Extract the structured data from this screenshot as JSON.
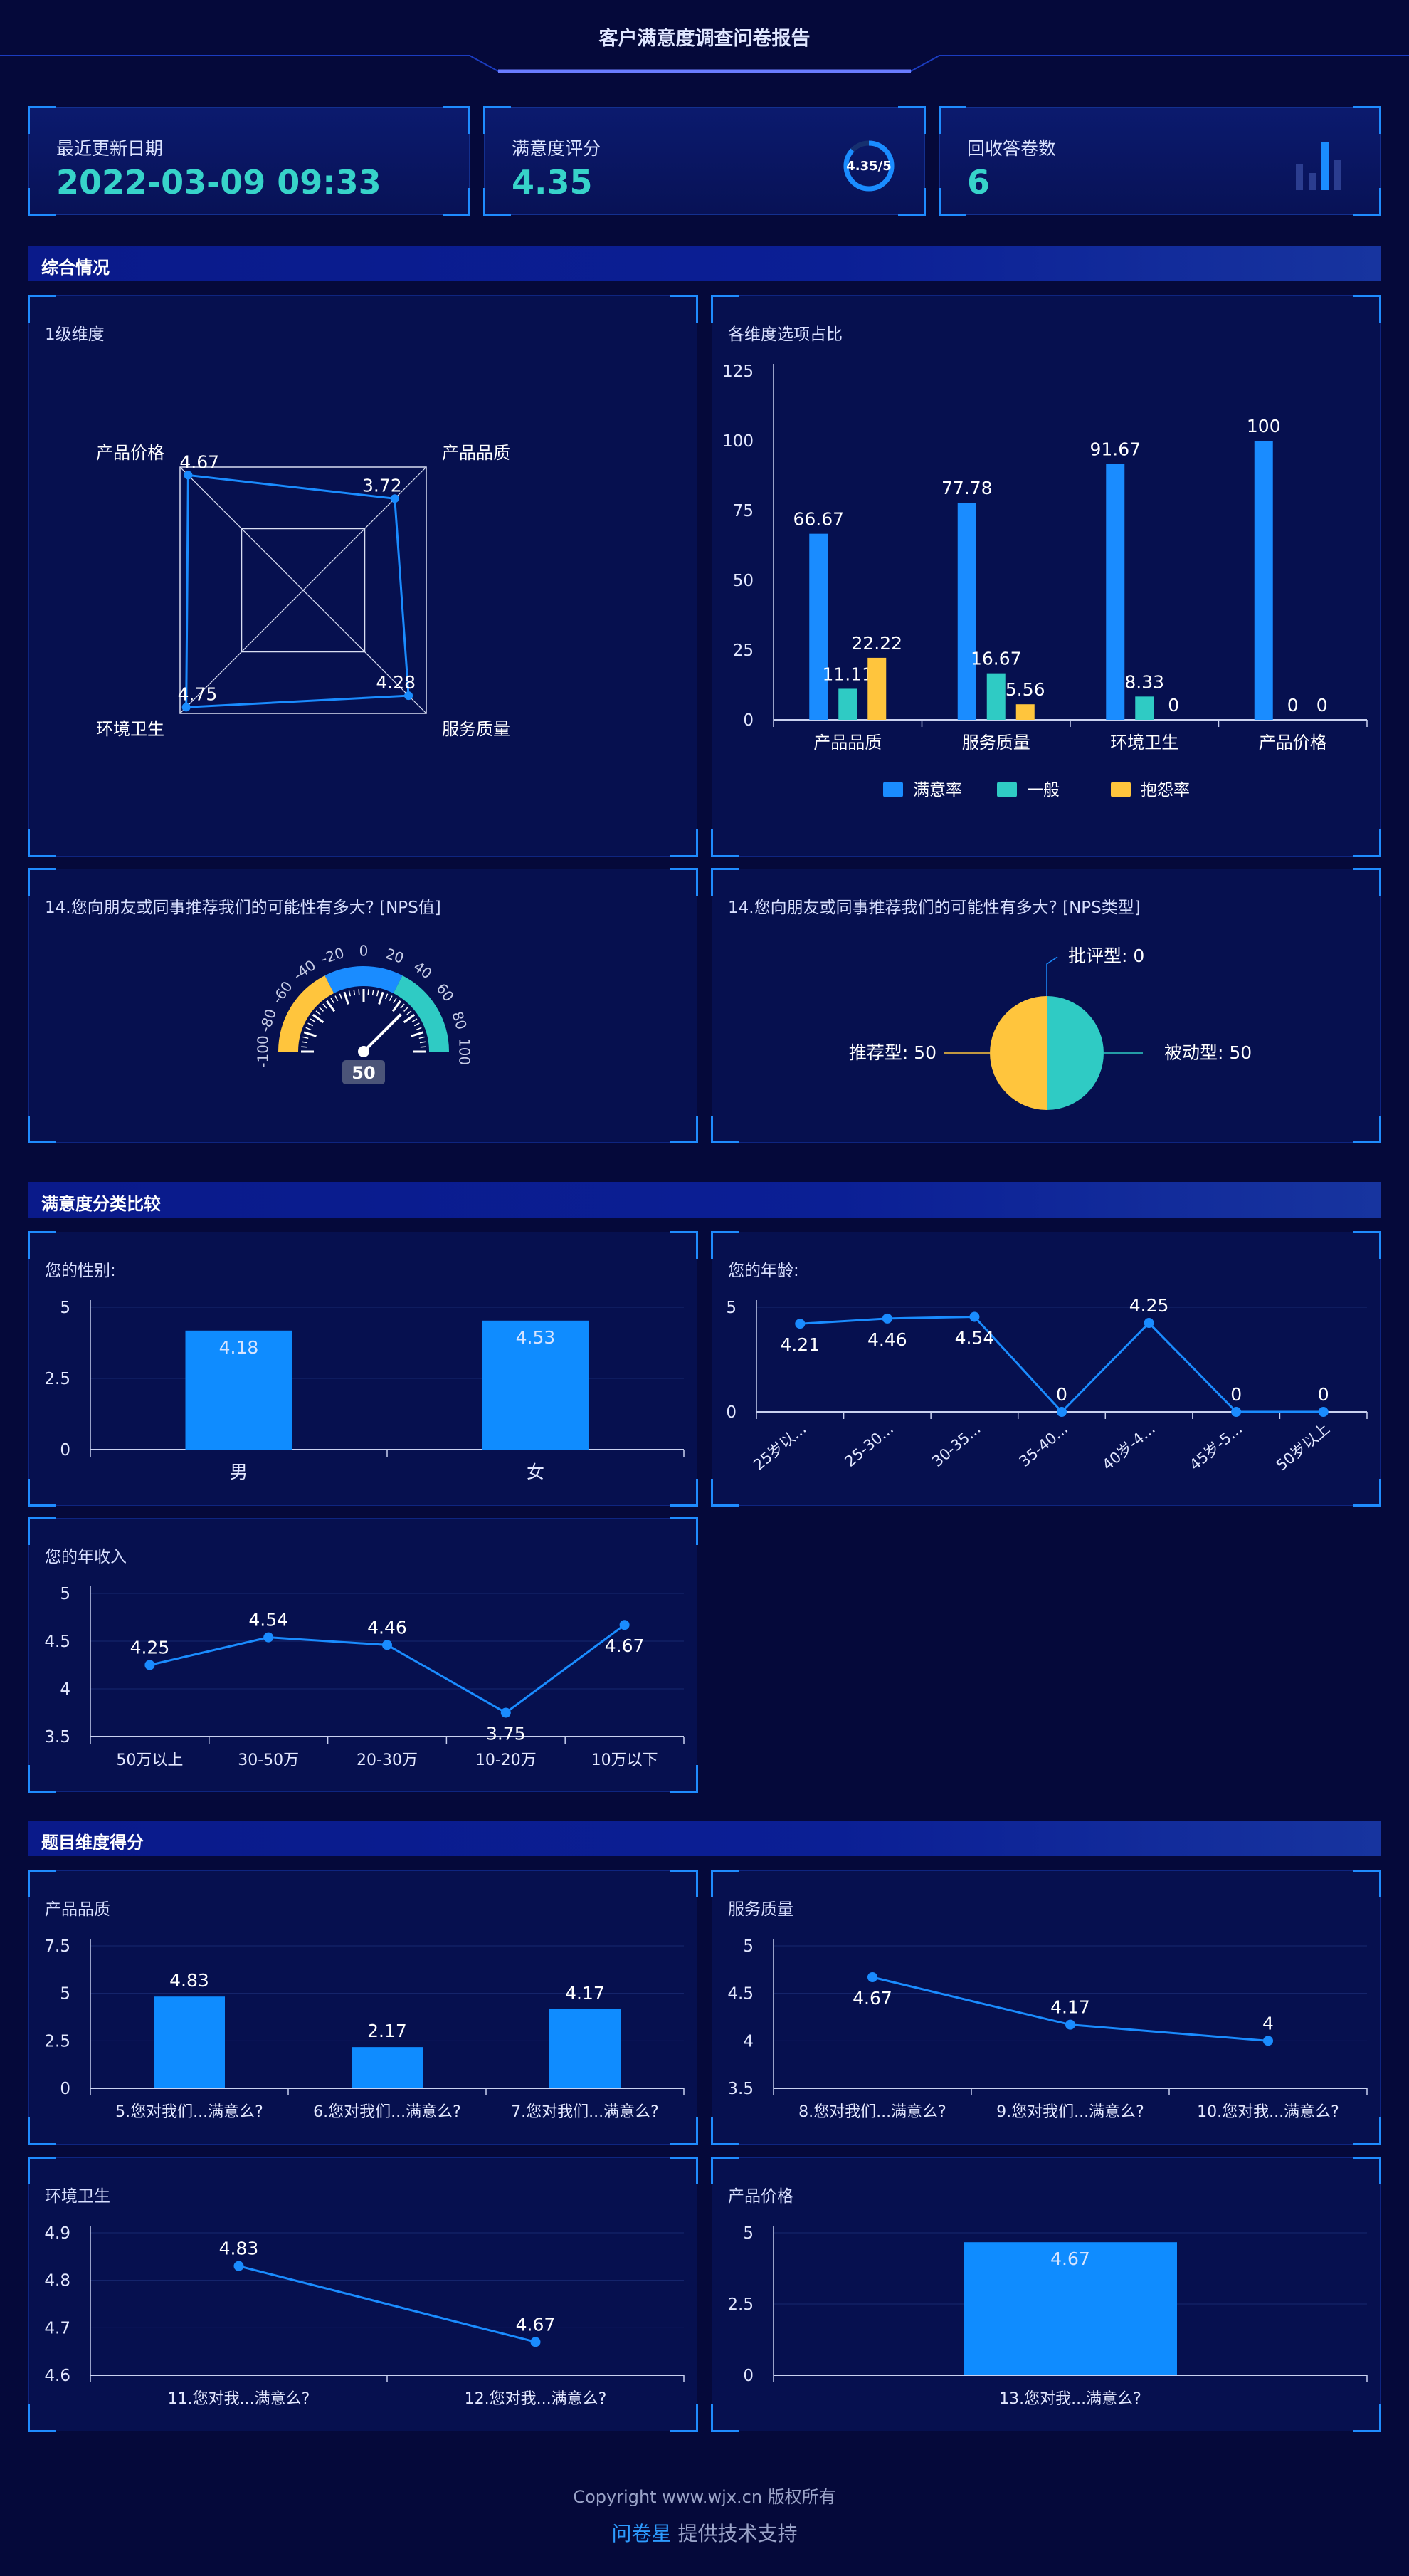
{
  "header": {
    "title": "客户满意度调查问卷报告"
  },
  "stats": {
    "updated": {
      "label": "最近更新日期",
      "value": "2022-03-09 09:33"
    },
    "score": {
      "label": "满意度评分",
      "value": "4.35",
      "ring_text": "4.35/5",
      "ring_fraction": 0.87
    },
    "responses": {
      "label": "回收答卷数",
      "value": "6"
    }
  },
  "sections": {
    "overview": "综合情况",
    "compare": "满意度分类比较",
    "dimension": "题目维度得分"
  },
  "panels": {
    "radar": "1级维度",
    "ratio": "各维度选项占比",
    "nps_gauge": "14.您向朋友或同事推荐我们的可能性有多大? [NPS值]",
    "nps_type": "14.您向朋友或同事推荐我们的可能性有多大? [NPS类型]",
    "gender": "您的性别:",
    "age": "您的年龄:",
    "income": "您的年收入",
    "quality": "产品品质",
    "service": "服务质量",
    "env": "环境卫生",
    "price": "产品价格"
  },
  "chart_data": [
    {
      "id": "radar",
      "type": "radar",
      "axes": [
        "产品品质",
        "服务质量",
        "环境卫生",
        "产品价格"
      ],
      "values": [
        3.72,
        4.28,
        4.75,
        4.67
      ],
      "max": 5
    },
    {
      "id": "ratio",
      "type": "bar",
      "categories": [
        "产品品质",
        "服务质量",
        "环境卫生",
        "产品价格"
      ],
      "series": [
        {
          "name": "满意率",
          "values": [
            66.67,
            77.78,
            91.67,
            100
          ],
          "color": "#1a8cff"
        },
        {
          "name": "一般",
          "values": [
            11.11,
            16.67,
            8.33,
            0
          ],
          "color": "#2fcbc4"
        },
        {
          "name": "抱怨率",
          "values": [
            22.22,
            5.56,
            0,
            0
          ],
          "color": "#ffc53d"
        }
      ],
      "ylim": [
        0,
        125
      ],
      "yticks": [
        0,
        25,
        50,
        75,
        100,
        125
      ],
      "legend": "bottom"
    },
    {
      "id": "nps_gauge",
      "type": "gauge",
      "value": 50,
      "min": -100,
      "max": 100,
      "ticks": [
        -100,
        -80,
        -60,
        -40,
        -20,
        0,
        20,
        40,
        60,
        80,
        100
      ]
    },
    {
      "id": "nps_type",
      "type": "pie",
      "slices": [
        {
          "label": "推荐型",
          "value": 50,
          "color": "#ffc53d"
        },
        {
          "label": "被动型",
          "value": 50,
          "color": "#2fcbc4"
        },
        {
          "label": "批评型",
          "value": 0,
          "color": "#1a8cff"
        }
      ]
    },
    {
      "id": "gender",
      "type": "bar",
      "categories": [
        "男",
        "女"
      ],
      "values": [
        4.18,
        4.53
      ],
      "ylim": [
        0,
        5
      ],
      "yticks": [
        0,
        2.5,
        5
      ]
    },
    {
      "id": "age",
      "type": "line",
      "categories": [
        "25岁以...",
        "25-30...",
        "30-35...",
        "35-40...",
        "40岁-4...",
        "45岁-5...",
        "50岁以上"
      ],
      "values": [
        4.21,
        4.46,
        4.54,
        0,
        4.25,
        0,
        0
      ],
      "ylim": [
        0,
        5
      ],
      "yticks": [
        0,
        5
      ]
    },
    {
      "id": "income",
      "type": "line",
      "categories": [
        "50万以上",
        "30-50万",
        "20-30万",
        "10-20万",
        "10万以下"
      ],
      "values": [
        4.25,
        4.54,
        4.46,
        3.75,
        4.67
      ],
      "ylim": [
        3.5,
        5
      ],
      "yticks": [
        3.5,
        4,
        4.5,
        5
      ]
    },
    {
      "id": "quality",
      "type": "bar",
      "categories": [
        "5.您对我们...满意么?",
        "6.您对我们...满意么?",
        "7.您对我们...满意么?"
      ],
      "values": [
        4.83,
        2.17,
        4.17
      ],
      "ylim": [
        0,
        7.5
      ],
      "yticks": [
        0,
        2.5,
        5,
        7.5
      ]
    },
    {
      "id": "service",
      "type": "line",
      "categories": [
        "8.您对我们...满意么?",
        "9.您对我们...满意么?",
        "10.您对我...满意么?"
      ],
      "values": [
        4.67,
        4.17,
        4
      ],
      "ylim": [
        3.5,
        5
      ],
      "yticks": [
        3.5,
        4,
        4.5,
        5
      ]
    },
    {
      "id": "env",
      "type": "line",
      "categories": [
        "11.您对我...满意么?",
        "12.您对我...满意么?"
      ],
      "values": [
        4.83,
        4.67
      ],
      "ylim": [
        4.6,
        4.9
      ],
      "yticks": [
        4.6,
        4.7,
        4.8,
        4.9
      ]
    },
    {
      "id": "price",
      "type": "bar",
      "categories": [
        "13.您对我...满意么?"
      ],
      "values": [
        4.67
      ],
      "ylim": [
        0,
        5
      ],
      "yticks": [
        0,
        2.5,
        5
      ]
    }
  ],
  "footer": {
    "copyright": "Copyright www.wjx.cn 版权所有",
    "brand": "问卷星",
    "support": " 提供技术支持"
  }
}
